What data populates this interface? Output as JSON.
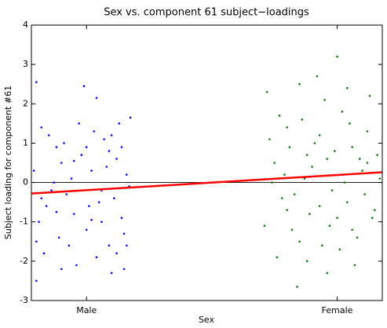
{
  "chart_data": {
    "type": "scatter",
    "title": "Sex vs. component 61 subject−loadings",
    "x_label": "Sex",
    "y_label": "Subject loading for component #61",
    "xlim": [
      -0.22,
      1.18
    ],
    "xticks": [
      {
        "value": 0,
        "label": "Male"
      },
      {
        "value": 1,
        "label": "Female"
      }
    ],
    "ylim": [
      -3,
      4
    ],
    "yticks": [
      -3,
      -2,
      -1,
      0,
      1,
      2,
      3,
      4
    ],
    "hline": 0,
    "series": [
      {
        "name": "Male",
        "color": "#0000ff",
        "x": [
          -0.2,
          -0.01,
          0.04,
          -0.2,
          0.1,
          0.15,
          0.175,
          -0.18,
          -0.15,
          -0.12,
          -0.1,
          -0.08,
          -0.05,
          -0.03,
          0.0,
          0.02,
          0.05,
          0.07,
          0.09,
          0.12,
          0.14,
          0.16,
          -0.19,
          -0.17,
          -0.14,
          -0.11,
          -0.09,
          -0.06,
          -0.04,
          -0.02,
          0.01,
          0.03,
          0.06,
          0.08,
          0.11,
          0.13,
          0.15,
          0.17,
          -0.21,
          -0.16,
          -0.13,
          -0.07,
          0.0,
          0.04,
          0.09,
          0.12,
          -0.18,
          -0.1,
          0.06,
          0.14,
          -0.05,
          0.02,
          0.16,
          -0.12,
          0.1,
          -0.2
        ],
        "values": [
          2.55,
          2.45,
          2.15,
          -2.5,
          -2.3,
          -2.2,
          1.65,
          1.4,
          1.2,
          0.9,
          0.5,
          -0.3,
          -0.8,
          1.5,
          -1.2,
          0.3,
          -0.5,
          1.1,
          -1.6,
          0.6,
          -0.9,
          0.2,
          -1.0,
          -1.8,
          -0.2,
          -1.4,
          1.0,
          0.1,
          -2.1,
          0.7,
          -0.6,
          1.3,
          -1.0,
          0.4,
          -0.4,
          1.5,
          -1.3,
          -0.1,
          0.3,
          -0.6,
          0.0,
          -1.6,
          0.9,
          -1.9,
          0.8,
          -1.8,
          -0.4,
          -2.2,
          -0.2,
          0.9,
          0.55,
          -0.95,
          -1.6,
          -0.75,
          1.2,
          -1.5
        ]
      },
      {
        "name": "Female",
        "color": "#008000",
        "x": [
          1.0,
          0.92,
          0.84,
          0.85,
          0.72,
          0.75,
          0.78,
          0.8,
          0.82,
          0.87,
          0.89,
          0.91,
          0.94,
          0.96,
          0.98,
          1.02,
          1.04,
          1.06,
          1.08,
          1.1,
          1.12,
          1.14,
          1.16,
          0.71,
          0.73,
          0.76,
          0.79,
          0.81,
          0.83,
          0.86,
          0.88,
          0.9,
          0.93,
          0.95,
          0.97,
          0.99,
          1.01,
          1.03,
          1.05,
          1.07,
          1.09,
          1.11,
          1.13,
          1.15,
          1.17,
          0.74,
          0.77,
          0.85,
          0.93,
          1.0,
          1.06,
          1.12,
          0.8,
          0.96,
          1.04,
          0.88
        ],
        "values": [
          3.2,
          2.7,
          -2.65,
          2.5,
          2.3,
          0.5,
          -0.4,
          1.4,
          -1.2,
          0.1,
          -0.8,
          1.0,
          -1.6,
          0.6,
          -0.2,
          1.8,
          -0.5,
          0.9,
          -1.4,
          0.3,
          1.3,
          -0.9,
          0.7,
          -1.1,
          1.1,
          -1.9,
          0.2,
          0.9,
          -0.3,
          1.6,
          -2.0,
          0.4,
          -0.6,
          2.1,
          -1.1,
          0.8,
          -1.7,
          0.0,
          1.5,
          -2.1,
          0.6,
          -0.3,
          2.2,
          -0.7,
          0.1,
          0.0,
          1.7,
          -1.5,
          1.2,
          -0.9,
          -1.2,
          0.5,
          -0.7,
          -2.3,
          2.4,
          0.7
        ]
      }
    ],
    "fit": {
      "color": "#ff0000",
      "x": [
        -0.22,
        1.18
      ],
      "values": [
        -0.28,
        0.26
      ]
    }
  }
}
